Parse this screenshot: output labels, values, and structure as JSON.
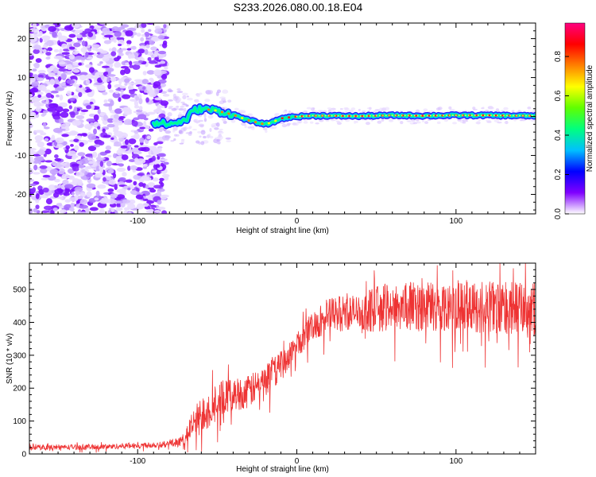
{
  "title": "S233.2026.080.00.18.E04",
  "chart_data": [
    {
      "type": "heatmap",
      "name": "spectrogram",
      "xlabel": "Height of straight line (km)",
      "ylabel": "Frequency (Hz)",
      "xlim": [
        -168,
        150
      ],
      "ylim": [
        -25,
        24
      ],
      "xticks": [
        -100,
        0,
        100
      ],
      "yticks": [
        -20,
        -10,
        0,
        10,
        20
      ],
      "noise_region_km": [
        -168,
        -82
      ],
      "ridge": {
        "x": [
          -90,
          -80,
          -70,
          -65,
          -60,
          -50,
          -40,
          -30,
          -20,
          -15,
          -10,
          0,
          10,
          20,
          40,
          60,
          80,
          100,
          120,
          140,
          150
        ],
        "y": [
          -1.5,
          -2,
          -1,
          1.5,
          2,
          1.5,
          0.5,
          -1,
          -2,
          -1.5,
          -0.5,
          0,
          0.2,
          0.2,
          0.1,
          0.3,
          0.2,
          0.3,
          0.3,
          0.2,
          0.2
        ]
      },
      "colorbar": {
        "label": "Normalized spectral amplitude",
        "ticks": [
          0.0,
          0.2,
          0.4,
          0.6,
          0.8
        ],
        "tick_labels": [
          "0.0",
          "0.2",
          "0.4",
          "0.6",
          "0.8"
        ],
        "range": [
          0,
          0.97
        ],
        "colors": [
          "#ffffff",
          "#8000ff",
          "#0000ff",
          "#00c0ff",
          "#00ff80",
          "#60ff00",
          "#ffff00",
          "#ff8000",
          "#ff0000",
          "#ff0080"
        ]
      }
    },
    {
      "type": "line",
      "name": "snr",
      "xlabel": "Height of straight line (km)",
      "ylabel": "SNR (10 * v/v)",
      "xlim": [
        -168,
        150
      ],
      "ylim": [
        0,
        580
      ],
      "xticks": [
        -100,
        0,
        100
      ],
      "yticks": [
        0,
        100,
        200,
        300,
        400,
        500
      ],
      "color": "#ee3333",
      "series": [
        {
          "name": "SNR trend",
          "x": [
            -168,
            -120,
            -80,
            -72,
            -65,
            -60,
            -50,
            -40,
            -30,
            -20,
            -10,
            0,
            10,
            20,
            30,
            40,
            50,
            60,
            80,
            100,
            120,
            150
          ],
          "y": [
            20,
            22,
            30,
            40,
            90,
            120,
            160,
            180,
            190,
            220,
            270,
            330,
            390,
            420,
            430,
            430,
            440,
            450,
            450,
            450,
            445,
            440
          ],
          "noise_amplitude": [
            8,
            8,
            10,
            15,
            45,
            60,
            60,
            50,
            50,
            50,
            45,
            40,
            45,
            55,
            55,
            55,
            70,
            75,
            75,
            80,
            80,
            80
          ]
        }
      ]
    }
  ]
}
